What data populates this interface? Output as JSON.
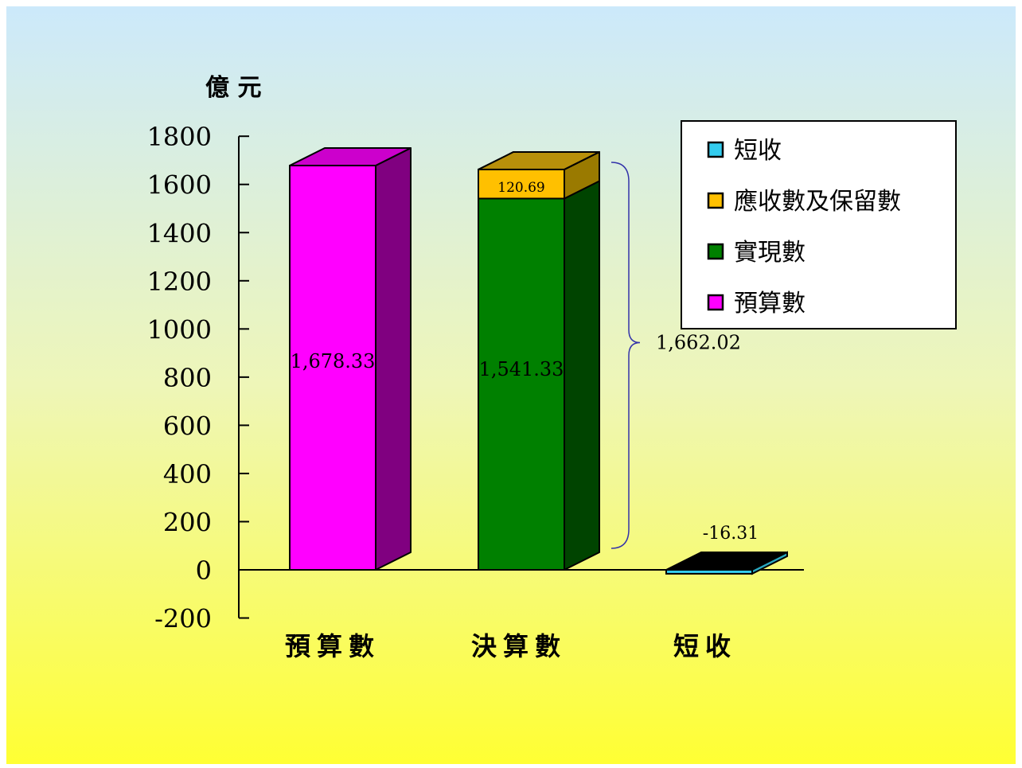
{
  "chart_data": {
    "type": "bar",
    "stacked": true,
    "three_d": true,
    "ylabel": "億 元",
    "ylim": [
      -200,
      1800
    ],
    "yticks": [
      -200,
      0,
      200,
      400,
      600,
      800,
      1000,
      1200,
      1400,
      1600,
      1800
    ],
    "categories": [
      "預算數",
      "決算數",
      "短收"
    ],
    "series": [
      {
        "name": "預算數",
        "color": "#ff00ff",
        "values": [
          1678.33,
          0,
          0
        ]
      },
      {
        "name": "實現數",
        "color": "#008000",
        "values": [
          0,
          1541.33,
          0
        ]
      },
      {
        "name": "應收數及保留數",
        "color": "#ffc000",
        "values": [
          0,
          120.69,
          0
        ]
      },
      {
        "name": "短收",
        "color": "#33ccee",
        "values": [
          0,
          0,
          -16.31
        ]
      }
    ],
    "data_labels": [
      "1,678.33",
      "1,541.33",
      "120.69",
      "-16.31"
    ],
    "brace_label": "1,662.02",
    "legend_position": "top-right",
    "legend": [
      "短收",
      "應收數及保留數",
      "實現數",
      "預算數"
    ],
    "grid": false
  }
}
